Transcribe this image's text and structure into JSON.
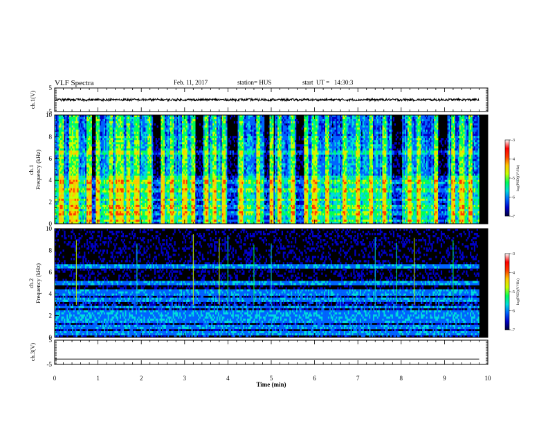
{
  "header": {
    "title": "VLF Spectra",
    "date": "Feb. 11, 2017",
    "station": "station= HUS",
    "start": "start  UT =   14:30:3"
  },
  "chart_data": {
    "type": "heatmap",
    "xlabel": "Time (min)",
    "xlim": [
      0,
      10
    ],
    "x_ticks": [
      "0",
      "1",
      "2",
      "3",
      "4",
      "5",
      "6",
      "7",
      "8",
      "9",
      "10"
    ],
    "data_end_min": 9.8,
    "panels": [
      {
        "id": "ch1_wave",
        "type": "line",
        "ylabel": "ch.1(V)",
        "ylim": [
          -5,
          5
        ],
        "y_ticks": [
          "5",
          "-5"
        ],
        "level": 0,
        "noise_amplitude": 0.5
      },
      {
        "id": "ch1_spec",
        "type": "heatmap",
        "ylabel_channel": "ch.1",
        "ylabel": "Frequency (kHz)",
        "ylim": [
          0,
          10
        ],
        "y_ticks": [
          "0",
          "2",
          "4",
          "6",
          "8",
          "10"
        ],
        "bright_times": [
          0.15,
          0.4,
          0.5,
          0.8,
          1.0,
          1.3,
          1.45,
          1.55,
          1.7,
          1.9,
          2.2,
          2.5,
          2.7,
          3.0,
          3.2,
          3.5,
          3.7,
          3.9,
          4.3,
          4.7,
          5.0,
          5.2,
          5.5,
          5.8,
          6.0,
          6.3,
          6.7,
          7.0,
          7.3,
          7.6,
          8.2,
          8.4,
          8.8,
          9.2,
          9.4,
          9.6
        ],
        "dark_times": [
          0.9,
          2.4,
          3.3,
          4.1,
          4.95,
          5.7,
          7.9,
          8.95
        ],
        "bands_khz": [
          0.3,
          0.9,
          1.5,
          2.2,
          3.0,
          3.8,
          6.6
        ]
      },
      {
        "id": "ch2_spec",
        "type": "heatmap",
        "ylabel_channel": "ch.2",
        "ylabel": "Frequency (kHz)",
        "ylim": [
          0,
          10
        ],
        "y_ticks": [
          "0",
          "2",
          "4",
          "6",
          "8",
          "10"
        ],
        "bands_khz": [
          0.4,
          1.0,
          1.6,
          2.0,
          2.3,
          2.8,
          3.5,
          4.0,
          4.3,
          5.0,
          6.5
        ],
        "sferic_times": [
          0.5,
          1.9,
          3.2,
          3.8,
          4.0,
          4.6,
          5.0,
          7.4,
          7.9,
          8.3,
          9.2
        ]
      },
      {
        "id": "ch3_wave",
        "type": "line",
        "ylabel": "ch.3(V)",
        "ylim": [
          -5,
          5
        ],
        "y_ticks": [
          "5",
          "-5"
        ],
        "level": -2.8
      }
    ],
    "colorbar": {
      "label": "log(PSD)(V²/Hz)",
      "range": [
        -7,
        -3
      ],
      "ticks": [
        "-3",
        "-4",
        "-5",
        "-6",
        "-7"
      ]
    },
    "colormap": [
      "#00003c",
      "#0000c8",
      "#0064ff",
      "#00dcdc",
      "#00ff5a",
      "#c8ff00",
      "#ffc800",
      "#ff3c00",
      "#ff0000",
      "#ffffff"
    ]
  }
}
